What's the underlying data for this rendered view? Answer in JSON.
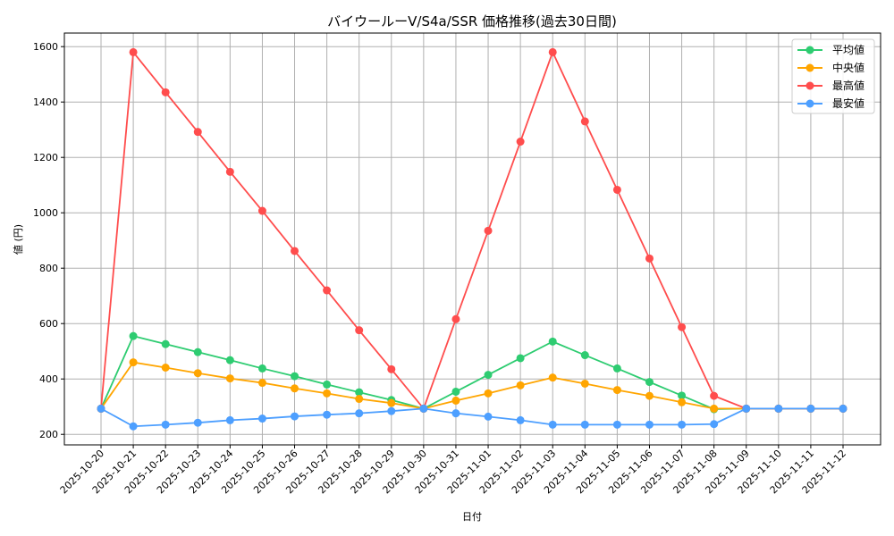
{
  "chart_data": {
    "type": "line",
    "title": "バイウールーV/S4a/SSR 価格推移(過去30日間)",
    "xlabel": "日付",
    "ylabel": "値 (円)",
    "ylim": [
      162,
      1649
    ],
    "yticks": [
      200,
      400,
      600,
      800,
      1000,
      1200,
      1400,
      1600
    ],
    "grid": true,
    "legend_position": "upper right",
    "x": [
      "2025-10-20",
      "2025-10-21",
      "2025-10-22",
      "2025-10-23",
      "2025-10-24",
      "2025-10-25",
      "2025-10-26",
      "2025-10-27",
      "2025-10-28",
      "2025-10-29",
      "2025-10-30",
      "2025-10-31",
      "2025-11-01",
      "2025-11-02",
      "2025-11-03",
      "2025-11-04",
      "2025-11-05",
      "2025-11-06",
      "2025-11-07",
      "2025-11-08",
      "2025-11-09",
      "2025-11-10",
      "2025-11-11",
      "2025-11-12"
    ],
    "series": [
      {
        "name": "平均値",
        "color": "#2ecc71",
        "values": [
          293,
          555,
          526,
          497,
          468,
          438,
          410,
          380,
          352,
          324,
          293,
          354,
          415,
          475,
          535,
          486,
          438,
          389,
          340,
          291,
          293,
          293,
          293,
          293
        ]
      },
      {
        "name": "中央値",
        "color": "#ffa500",
        "values": [
          293,
          460,
          441,
          421,
          402,
          386,
          366,
          348,
          328,
          313,
          293,
          322,
          348,
          377,
          405,
          383,
          360,
          339,
          316,
          293,
          293,
          293,
          293,
          293
        ]
      },
      {
        "name": "最高値",
        "color": "#ff4d4d",
        "values": [
          293,
          1580,
          1435,
          1292,
          1148,
          1007,
          862,
          720,
          576,
          435,
          293,
          616,
          935,
          1257,
          1580,
          1330,
          1083,
          835,
          587,
          339,
          293,
          293,
          293,
          293
        ]
      },
      {
        "name": "最安値",
        "color": "#4d9fff",
        "values": [
          293,
          229,
          235,
          242,
          251,
          257,
          265,
          271,
          276,
          284,
          293,
          276,
          264,
          251,
          235,
          235,
          235,
          235,
          235,
          237,
          293,
          293,
          293,
          293
        ]
      }
    ]
  },
  "legend": {
    "items": [
      {
        "label": "平均値",
        "color": "#2ecc71"
      },
      {
        "label": " 中央値",
        "color": "#ffa500"
      },
      {
        "label": "最高値",
        "color": "#ff4d4d"
      },
      {
        "label": "最安値",
        "color": "#4d9fff"
      }
    ]
  }
}
